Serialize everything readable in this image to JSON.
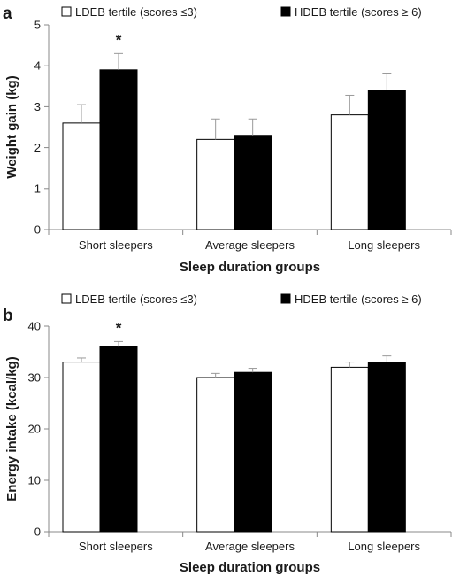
{
  "chart_data": [
    {
      "type": "bar",
      "panel_label": "a",
      "categories": [
        "Short sleepers",
        "Average sleepers",
        "Long sleepers"
      ],
      "series": [
        {
          "name": "LDEB tertile (scores ≤3)",
          "values": [
            2.6,
            2.2,
            2.8
          ],
          "error": [
            0.45,
            0.5,
            0.48
          ],
          "color": "#ffffff"
        },
        {
          "name": "HDEB tertile (scores ≥ 6)",
          "values": [
            3.9,
            2.3,
            3.4
          ],
          "error": [
            0.4,
            0.4,
            0.42
          ],
          "color": "#000000"
        }
      ],
      "annotations": [
        {
          "category": "Short sleepers",
          "text": "*"
        }
      ],
      "xlabel": "Sleep duration groups",
      "ylabel": "Weight gain (kg)",
      "ylim": [
        0,
        5
      ],
      "yticks": [
        0,
        1,
        2,
        3,
        4,
        5
      ],
      "grid": false,
      "legend_position": "top"
    },
    {
      "type": "bar",
      "panel_label": "b",
      "categories": [
        "Short sleepers",
        "Average sleepers",
        "Long sleepers"
      ],
      "series": [
        {
          "name": "LDEB tertile (scores ≤3)",
          "values": [
            33,
            30,
            32
          ],
          "error": [
            0.8,
            0.8,
            1.0
          ],
          "color": "#ffffff"
        },
        {
          "name": "HDEB tertile (scores ≥ 6)",
          "values": [
            36,
            31,
            33
          ],
          "error": [
            1.0,
            0.8,
            1.2
          ],
          "color": "#000000"
        }
      ],
      "annotations": [
        {
          "category": "Short sleepers",
          "text": "*"
        }
      ],
      "xlabel": "Sleep duration groups",
      "ylabel": "Energy intake (kcal/kg)",
      "ylim": [
        0,
        40
      ],
      "yticks": [
        0,
        10,
        20,
        30,
        40
      ],
      "grid": false,
      "legend_position": "top"
    }
  ]
}
